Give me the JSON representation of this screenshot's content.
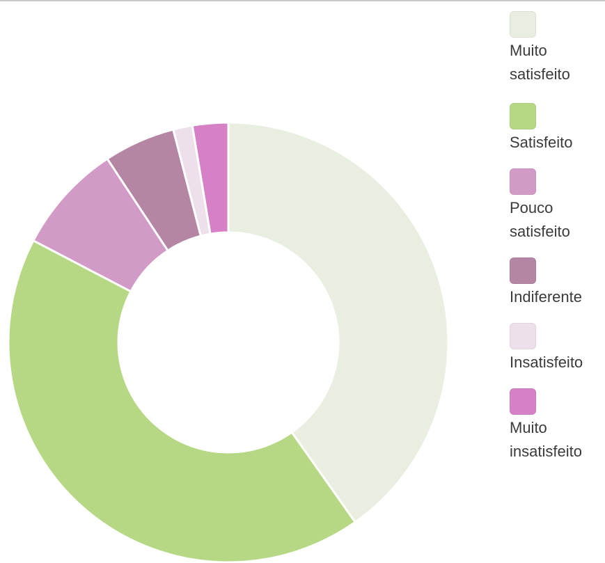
{
  "chart_data": {
    "type": "pie",
    "title": "",
    "donut": true,
    "categories": [
      "Muito\nsatisfeito",
      "Satisfeito",
      "Pouco\nsatisfeito",
      "Indiferente",
      "Insatisfeito",
      "Muito\ninsatisfeito"
    ],
    "values": [
      39.9,
      42.1,
      8.0,
      5.2,
      1.4,
      2.6
    ],
    "value_unit": "percent (estimated)",
    "colors": [
      "#e8eee0",
      "#b6d884",
      "#d29ac6",
      "#b486a3",
      "#ede0ea",
      "#d681c6"
    ],
    "legend_position": "right",
    "start_angle": "12 o'clock, clockwise"
  }
}
